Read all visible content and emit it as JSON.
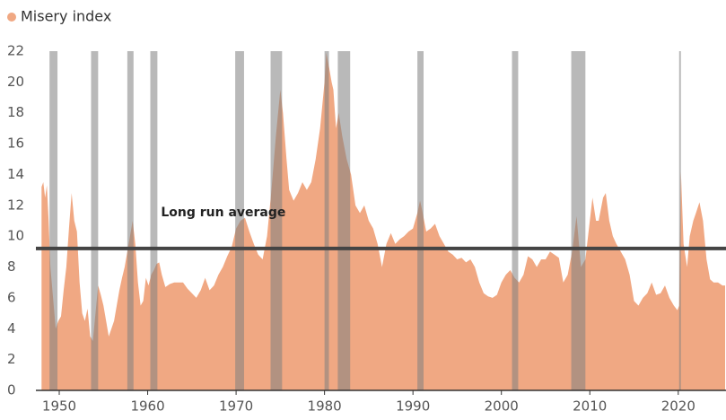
{
  "chart_data": {
    "type": "area",
    "series": [
      {
        "name": "Misery index",
        "color": "#f0a883",
        "x": [
          1948.0,
          1948.2,
          1948.4,
          1948.6,
          1948.8,
          1949.0,
          1949.3,
          1949.6,
          1949.9,
          1950.2,
          1950.5,
          1950.8,
          1951.1,
          1951.4,
          1951.7,
          1952.0,
          1952.3,
          1952.6,
          1952.9,
          1953.2,
          1953.5,
          1953.8,
          1954.1,
          1954.4,
          1954.7,
          1955.0,
          1955.3,
          1955.6,
          1955.9,
          1956.2,
          1956.5,
          1956.8,
          1957.1,
          1957.4,
          1957.7,
          1958.0,
          1958.3,
          1958.6,
          1958.9,
          1959.2,
          1959.5,
          1959.8,
          1960.1,
          1960.4,
          1960.7,
          1961.0,
          1961.3,
          1961.6,
          1962.0,
          1962.5,
          1963.0,
          1963.5,
          1964.0,
          1964.5,
          1965.0,
          1965.5,
          1966.0,
          1966.5,
          1967.0,
          1967.5,
          1968.0,
          1968.5,
          1969.0,
          1969.5,
          1970.0,
          1970.5,
          1971.0,
          1971.5,
          1972.0,
          1972.5,
          1973.0,
          1973.5,
          1974.0,
          1974.5,
          1975.0,
          1975.3,
          1975.7,
          1976.0,
          1976.5,
          1977.0,
          1977.5,
          1978.0,
          1978.5,
          1979.0,
          1979.5,
          1980.0,
          1980.2,
          1980.5,
          1980.8,
          1981.0,
          1981.3,
          1981.6,
          1982.0,
          1982.5,
          1983.0,
          1983.5,
          1984.0,
          1984.5,
          1985.0,
          1985.5,
          1986.0,
          1986.5,
          1987.0,
          1987.5,
          1988.0,
          1988.5,
          1989.0,
          1989.5,
          1990.0,
          1990.5,
          1990.8,
          1991.0,
          1991.5,
          1992.0,
          1992.5,
          1993.0,
          1993.5,
          1994.0,
          1994.5,
          1995.0,
          1995.5,
          1996.0,
          1996.5,
          1997.0,
          1997.5,
          1998.0,
          1998.5,
          1999.0,
          1999.5,
          2000.0,
          2000.5,
          2001.0,
          2001.5,
          2002.0,
          2002.5,
          2003.0,
          2003.5,
          2004.0,
          2004.5,
          2005.0,
          2005.5,
          2006.0,
          2006.5,
          2007.0,
          2007.5,
          2008.0,
          2008.5,
          2009.0,
          2009.5,
          2010.0,
          2010.3,
          2010.7,
          2011.0,
          2011.5,
          2011.8,
          2012.2,
          2012.6,
          2013.0,
          2013.5,
          2014.0,
          2014.5,
          2015.0,
          2015.5,
          2016.0,
          2016.5,
          2017.0,
          2017.5,
          2018.0,
          2018.5,
          2019.0,
          2019.5,
          2019.9,
          2020.1,
          2020.3,
          2020.6,
          2021.0,
          2021.3,
          2021.7,
          2022.0,
          2022.4,
          2022.8,
          2023.2,
          2023.6,
          2024.0,
          2024.5,
          2025.0,
          2025.3
        ],
        "values": [
          13.2,
          13.5,
          12.5,
          13.3,
          11,
          8,
          6,
          4.0,
          4.5,
          4.8,
          6.5,
          8,
          10.5,
          12.8,
          11,
          10.3,
          7,
          5,
          4.5,
          5.3,
          3.5,
          3.2,
          5,
          6.8,
          6.2,
          5.5,
          4.5,
          3.5,
          4,
          4.5,
          5.5,
          6.5,
          7.3,
          8,
          9,
          10,
          11,
          9.5,
          7,
          5.5,
          5.8,
          7.3,
          6.8,
          7.5,
          7.8,
          8.2,
          8.3,
          7.5,
          6.7,
          6.9,
          7,
          7,
          7,
          6.6,
          6.3,
          6.0,
          6.5,
          7.3,
          6.5,
          6.8,
          7.5,
          8.0,
          8.7,
          9.3,
          10.5,
          11,
          11.2,
          10.3,
          9.5,
          8.8,
          8.5,
          10,
          13,
          16.5,
          19.5,
          18,
          15,
          13,
          12.3,
          12.8,
          13.5,
          13,
          13.5,
          15,
          17,
          20,
          21.9,
          21,
          20,
          19.5,
          17,
          18,
          16.5,
          15,
          14,
          12,
          11.5,
          12,
          11,
          10.5,
          9.5,
          8,
          9.5,
          10.2,
          9.5,
          9.8,
          10,
          10.3,
          10.5,
          11.5,
          12.3,
          11.8,
          10.3,
          10.5,
          10.8,
          10,
          9.5,
          9,
          8.8,
          8.5,
          8.6,
          8.3,
          8.5,
          8,
          7,
          6.3,
          6.1,
          6,
          6.2,
          7,
          7.5,
          7.8,
          7.3,
          7,
          7.5,
          8.7,
          8.5,
          8,
          8.5,
          8.5,
          9,
          8.8,
          8.6,
          7,
          7.5,
          9,
          11.3,
          8,
          8.5,
          11,
          12.5,
          11,
          11,
          12.5,
          12.8,
          11,
          10,
          9.5,
          9,
          8.5,
          7.5,
          5.8,
          5.5,
          6.0,
          6.3,
          7,
          6.2,
          6.3,
          6.8,
          6,
          5.5,
          5.2,
          5.5,
          14.2,
          9.5,
          8,
          10,
          11,
          11.5,
          12.2,
          11,
          8.5,
          7.2,
          7,
          7,
          6.8,
          6.8
        ]
      }
    ],
    "recessions": [
      [
        1948.9,
        1949.8
      ],
      [
        1953.6,
        1954.4
      ],
      [
        1957.7,
        1958.4
      ],
      [
        1960.3,
        1961.1
      ],
      [
        1969.9,
        1970.9
      ],
      [
        1973.9,
        1975.2
      ],
      [
        1980.0,
        1980.5
      ],
      [
        1981.5,
        1982.9
      ],
      [
        1990.5,
        1991.2
      ],
      [
        2001.2,
        2001.9
      ],
      [
        2007.9,
        2009.5
      ],
      [
        2020.1,
        2020.3
      ]
    ],
    "average": {
      "value": 9.2,
      "label": "Long run average"
    },
    "xlim": [
      1947.36,
      2025.4
    ],
    "ylim": [
      0,
      22
    ],
    "xticks": [
      1950,
      1960,
      1970,
      1980,
      1990,
      2000,
      2010,
      2020
    ],
    "yticks": [
      0,
      2,
      4,
      6,
      8,
      10,
      12,
      14,
      16,
      18,
      20,
      22
    ]
  }
}
